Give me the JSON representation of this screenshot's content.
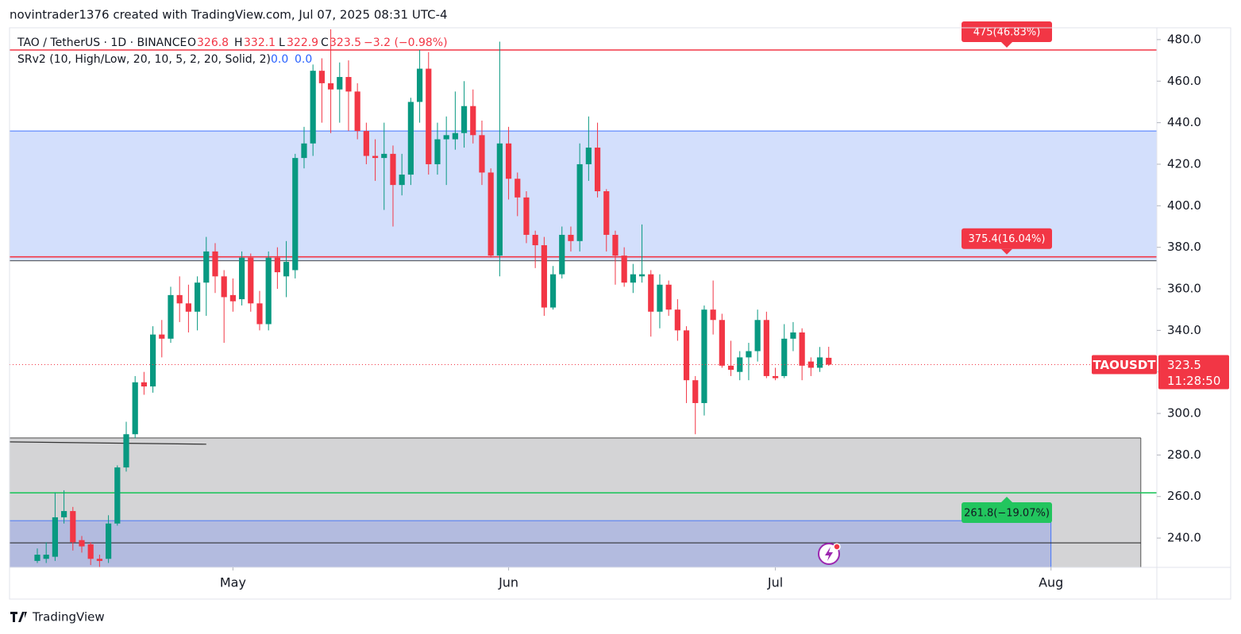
{
  "header": "novintrader1376 created with TradingView.com, Jul 07, 2025 08:31 UTC-4",
  "footer": "TradingView",
  "legend": {
    "symbol": "TAO / TetherUS · 1D · BINANCE",
    "o": "O",
    "h": "H",
    "l": "L",
    "c": "C",
    "change": "−3.2 (−0.98%)",
    "indicator": "SRv2 (10, High/Low, 20, 10, 5, 2, 20, Solid, 2)",
    "indicator_values": [
      "0.0",
      "0.0"
    ]
  },
  "chart_data": {
    "type": "candlestick",
    "categories": [
      null,
      null,
      null,
      null,
      null,
      null,
      null,
      null,
      null,
      null,
      null,
      null,
      null,
      null,
      null,
      null,
      null,
      null,
      null,
      null,
      null,
      null,
      null,
      null,
      null,
      null,
      null,
      null,
      null,
      null,
      null,
      null,
      null,
      null,
      null,
      null,
      null,
      null,
      null,
      null,
      null,
      null,
      null,
      null,
      null,
      null,
      null,
      null,
      null,
      null,
      null,
      null,
      null,
      null,
      null,
      null,
      null,
      null,
      null,
      null,
      null,
      null,
      null,
      null,
      null,
      null,
      null,
      null,
      null,
      null,
      null,
      null,
      null,
      null,
      null,
      null,
      null,
      null,
      null,
      null,
      null,
      null,
      null,
      null,
      null,
      null,
      null,
      null,
      null,
      null
    ],
    "open": [
      229,
      230,
      231,
      250,
      253,
      239,
      237,
      230,
      230,
      247,
      274,
      290,
      315,
      313,
      338,
      336,
      357,
      353,
      349,
      363,
      378,
      366,
      357,
      355,
      375,
      353,
      343,
      375,
      366,
      369,
      423,
      430,
      465,
      459,
      456,
      462,
      455,
      436,
      424,
      423,
      425,
      410,
      415,
      450,
      466,
      420,
      432,
      432,
      435,
      448,
      434,
      416,
      376,
      430,
      413,
      404,
      386,
      381,
      351,
      367,
      386,
      383,
      420,
      428,
      407,
      386,
      376,
      363,
      366,
      367,
      349,
      362,
      350,
      340,
      316,
      305,
      350,
      345,
      323,
      320,
      327,
      330,
      345,
      318,
      318,
      336,
      339,
      325,
      322,
      326.8
    ],
    "high": [
      235,
      238,
      262,
      263,
      255,
      241,
      238,
      232,
      251,
      275,
      296,
      318,
      320,
      342,
      345,
      361,
      366,
      362,
      366,
      385,
      382,
      369,
      365,
      378,
      377,
      359,
      378,
      380,
      383,
      425,
      438,
      468,
      471,
      485,
      469,
      470,
      459,
      440,
      432,
      440,
      429,
      425,
      452,
      475,
      474,
      440,
      443,
      455,
      460,
      456,
      441,
      418,
      479,
      438,
      416,
      407,
      388,
      385,
      371,
      390,
      390,
      430,
      443,
      440,
      408,
      388,
      380,
      372,
      391,
      369,
      367,
      364,
      355,
      342,
      318,
      352,
      364,
      348,
      335,
      330,
      334,
      350,
      349,
      322,
      343,
      344,
      341,
      327,
      332,
      332.1
    ],
    "low": [
      228,
      228,
      229,
      247,
      234,
      233,
      227,
      226,
      228,
      246,
      272,
      288,
      309,
      310,
      327,
      334,
      344,
      339,
      340,
      347,
      358,
      334,
      349,
      352,
      349,
      340,
      340,
      360,
      356,
      365,
      418,
      424,
      440,
      435,
      440,
      436,
      432,
      420,
      412,
      398,
      390,
      405,
      410,
      440,
      415,
      415,
      410,
      427,
      428,
      430,
      410,
      375,
      366,
      403,
      395,
      382,
      370,
      347,
      350,
      365,
      378,
      378,
      412,
      404,
      378,
      362,
      361,
      358,
      363,
      337,
      341,
      347,
      335,
      305,
      290,
      299,
      338,
      322,
      318,
      316,
      316,
      325,
      317,
      316,
      317,
      330,
      316,
      318,
      320,
      322.9
    ],
    "close": [
      232,
      232,
      250,
      253,
      238,
      236,
      230,
      229,
      247,
      274,
      290,
      315,
      313,
      338,
      336,
      357,
      353,
      349,
      363,
      378,
      366,
      356,
      354,
      375,
      353,
      343,
      375,
      368,
      373,
      423,
      430,
      465,
      459,
      456,
      462,
      455,
      436,
      424,
      423,
      425,
      410,
      415,
      450,
      466,
      420,
      432,
      434,
      435,
      448,
      434,
      416,
      376,
      430,
      413,
      404,
      386,
      381,
      351,
      367,
      386,
      383,
      420,
      428,
      407,
      386,
      376,
      363,
      367,
      367,
      349,
      362,
      350,
      340,
      316,
      305,
      350,
      345,
      323,
      321,
      327,
      330,
      345,
      318,
      317,
      336,
      339,
      323,
      322,
      327,
      323.5
    ],
    "up_color": "#089981",
    "down_color": "#f23645",
    "xlim": [
      -3.125,
      125.9
    ],
    "xticks": [
      {
        "value": 22,
        "label": "May"
      },
      {
        "value": 53,
        "label": "Jun"
      },
      {
        "value": 83,
        "label": "Jul"
      },
      {
        "value": 114,
        "label": "Aug"
      }
    ],
    "ylim": [
      225.9,
      485.7
    ],
    "yticks": [
      {
        "value": 240,
        "label": "240.0"
      },
      {
        "value": 260,
        "label": "260.0"
      },
      {
        "value": 280,
        "label": "280.0"
      },
      {
        "value": 300,
        "label": "300.0"
      },
      {
        "value": 320,
        "label": "320.0"
      },
      {
        "value": 340,
        "label": "340.0"
      },
      {
        "value": 360,
        "label": "360.0"
      },
      {
        "value": 380,
        "label": "380.0"
      },
      {
        "value": 400,
        "label": "400.0"
      },
      {
        "value": 420,
        "label": "420.0"
      },
      {
        "value": 440,
        "label": "440.0"
      },
      {
        "value": 460,
        "label": "460.0"
      },
      {
        "value": 480,
        "label": "480.0"
      }
    ],
    "zones": [
      {
        "ylim": [
          373.5,
          436
        ],
        "xlim": [
          -3.125,
          125.9
        ],
        "color": "#d3dffc"
      },
      {
        "ylim": [
          225.9,
          288.2
        ],
        "xlim": [
          -3.125,
          124.1
        ],
        "color": "#d4d4d6"
      },
      {
        "ylim": [
          225.9,
          248.4
        ],
        "xlim": [
          -3.125,
          114
        ],
        "color": "#b3bbdf"
      }
    ],
    "levels": [
      {
        "value": 475,
        "label": "475(46.83%)",
        "color": "#f23645",
        "pointer": "down"
      },
      {
        "value": 375.4,
        "label": "375.4(16.04%)",
        "color": "#f23645",
        "pointer": "down"
      },
      {
        "value": 261.8,
        "label": "261.8(−19.07%)",
        "color": "#22c55e",
        "pointer": "up"
      },
      {
        "value": 237.7,
        "color": "#222222",
        "xmax": 124.1
      }
    ],
    "trend_line": {
      "x": [
        -3.125,
        19
      ],
      "y": [
        286.3,
        285.2
      ]
    },
    "price_label": {
      "symbol": "TAOUSDT",
      "countdown": "11:28:50"
    }
  }
}
